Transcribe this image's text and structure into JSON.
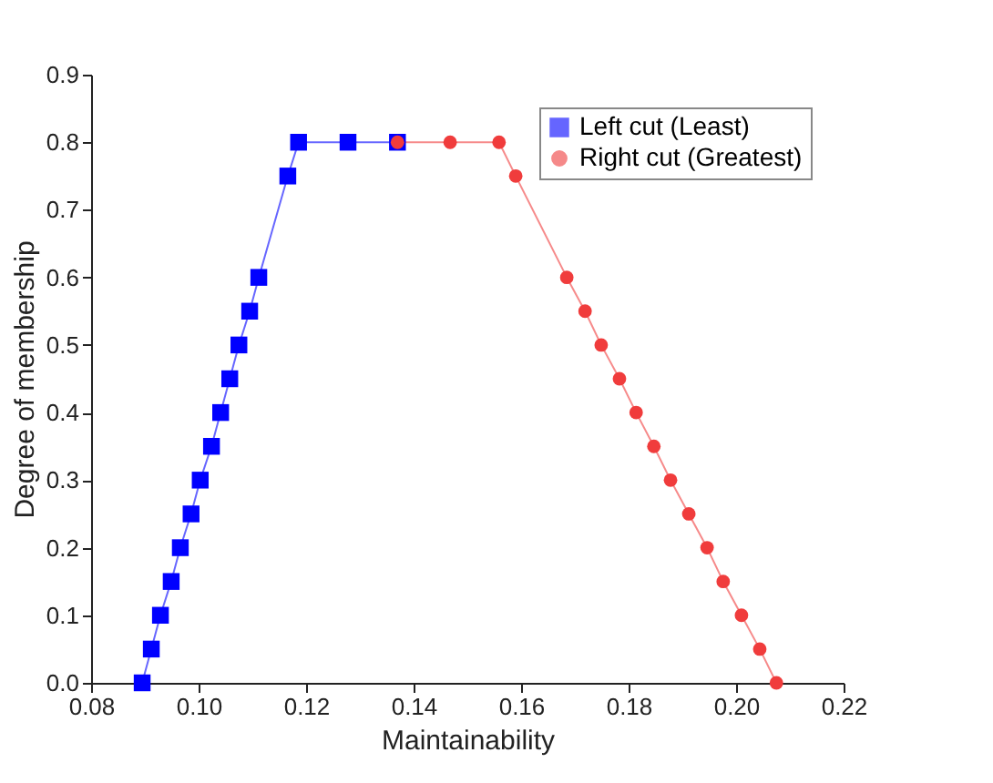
{
  "chart_data": {
    "type": "line",
    "xlabel": "Maintainability",
    "ylabel": "Degree of membership",
    "xlim": [
      0.08,
      0.22
    ],
    "xticks": [
      {
        "value": 0.08,
        "label": "0.08"
      },
      {
        "value": 0.1,
        "label": "0.10"
      },
      {
        "value": 0.12,
        "label": "0.12"
      },
      {
        "value": 0.14,
        "label": "0.14"
      },
      {
        "value": 0.16,
        "label": "0.16"
      },
      {
        "value": 0.18,
        "label": "0.18"
      },
      {
        "value": 0.2,
        "label": "0.20"
      },
      {
        "value": 0.22,
        "label": "0.22"
      }
    ],
    "ylim": [
      0,
      0.9
    ],
    "yticks": [
      {
        "value": 0,
        "label": "0.0"
      },
      0.1,
      0.2,
      0.3,
      0.4,
      0.5,
      0.6,
      0.7,
      0.8,
      0.9
    ],
    "legend": "top right",
    "grid": false,
    "line_style": "solid",
    "series": [
      {
        "name": "Left cut (Least)",
        "color": "#0000ff",
        "marker": "square",
        "x": [
          0.0895,
          0.0912,
          0.0929,
          0.0949,
          0.0966,
          0.0986,
          0.1003,
          0.1024,
          0.1041,
          0.1058,
          0.1075,
          0.1095,
          0.1112,
          0.1166,
          0.1186,
          0.1278,
          0.137
        ],
        "values": [
          0,
          0.05,
          0.1,
          0.15,
          0.2,
          0.25,
          0.3,
          0.35,
          0.4,
          0.45,
          0.5,
          0.55,
          0.6,
          0.75,
          0.8,
          0.8,
          0.8
        ]
      },
      {
        "name": "Right cut (Greatest)",
        "color": "#f03c3c",
        "marker": "circle",
        "x": [
          0.137,
          0.1468,
          0.1559,
          0.159,
          0.1685,
          0.1719,
          0.1749,
          0.1783,
          0.1814,
          0.1847,
          0.1878,
          0.1912,
          0.1946,
          0.1976,
          0.201,
          0.2044,
          0.2075
        ],
        "values": [
          0.8,
          0.8,
          0.8,
          0.75,
          0.6,
          0.55,
          0.5,
          0.45,
          0.4,
          0.35,
          0.3,
          0.25,
          0.2,
          0.15,
          0.1,
          0.05,
          0
        ]
      }
    ]
  }
}
